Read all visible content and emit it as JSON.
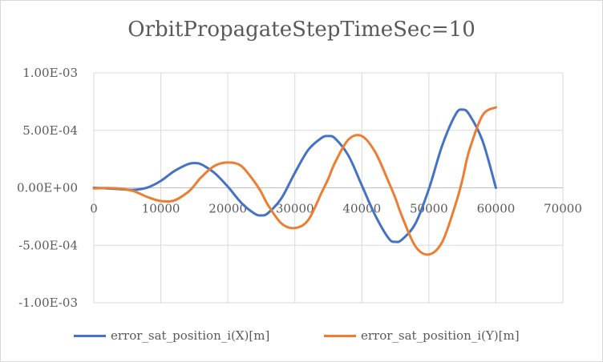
{
  "chart_data": {
    "type": "line",
    "title": "OrbitPropagateStepTimeSec=10",
    "xlabel": "",
    "ylabel": "",
    "xlim": [
      0,
      70000
    ],
    "ylim": [
      -0.001,
      0.001
    ],
    "x_ticks": [
      "0",
      "10000",
      "20000",
      "30000",
      "40000",
      "50000",
      "60000",
      "70000"
    ],
    "y_ticks": [
      "1.00E-03",
      "5.00E-04",
      "0.00E+00",
      "-5.00E-04",
      "-1.00E-03"
    ],
    "grid": true,
    "legend_position": "bottom",
    "x": [
      0,
      2000,
      4000,
      6000,
      8000,
      10000,
      12000,
      14000,
      15000,
      16000,
      18000,
      20000,
      22000,
      24000,
      25000,
      26000,
      28000,
      30000,
      32000,
      34000,
      35000,
      36000,
      38000,
      40000,
      42000,
      44000,
      45000,
      46000,
      48000,
      50000,
      52000,
      54000,
      55000,
      56000,
      58000,
      60000
    ],
    "series": [
      {
        "name": "error_sat_position_i(X)[m]",
        "color": "#4472c4",
        "values": [
          0,
          -5e-06,
          -1.2e-05,
          -1.8e-05,
          2e-06,
          6e-05,
          0.000145,
          0.000205,
          0.000215,
          0.000205,
          0.00013,
          1e-05,
          -0.00013,
          -0.000225,
          -0.00024,
          -0.00022,
          -9e-05,
          0.00013,
          0.00033,
          0.000435,
          0.00045,
          0.00043,
          0.00028,
          2e-05,
          -0.00024,
          -0.00044,
          -0.00047,
          -0.00045,
          -0.00031,
          -1e-05,
          0.00037,
          0.00064,
          0.00068,
          0.00064,
          0.00041,
          0.0
        ]
      },
      {
        "name": "error_sat_position_i(Y)[m]",
        "color": "#ed7d31",
        "values": [
          -5e-06,
          -2e-06,
          -8e-06,
          -3e-05,
          -8e-05,
          -0.000115,
          -0.00011,
          -4e-05,
          2e-05,
          9e-05,
          0.00019,
          0.00022,
          0.00019,
          5e-05,
          -4e-05,
          -0.00015,
          -0.00031,
          -0.00035,
          -0.00028,
          -4e-05,
          8e-05,
          0.00022,
          0.00042,
          0.00045,
          0.00031,
          5e-05,
          -9e-05,
          -0.00025,
          -0.00051,
          -0.00058,
          -0.00047,
          -0.00014,
          7e-05,
          0.00032,
          0.00063,
          0.0007
        ]
      }
    ]
  }
}
